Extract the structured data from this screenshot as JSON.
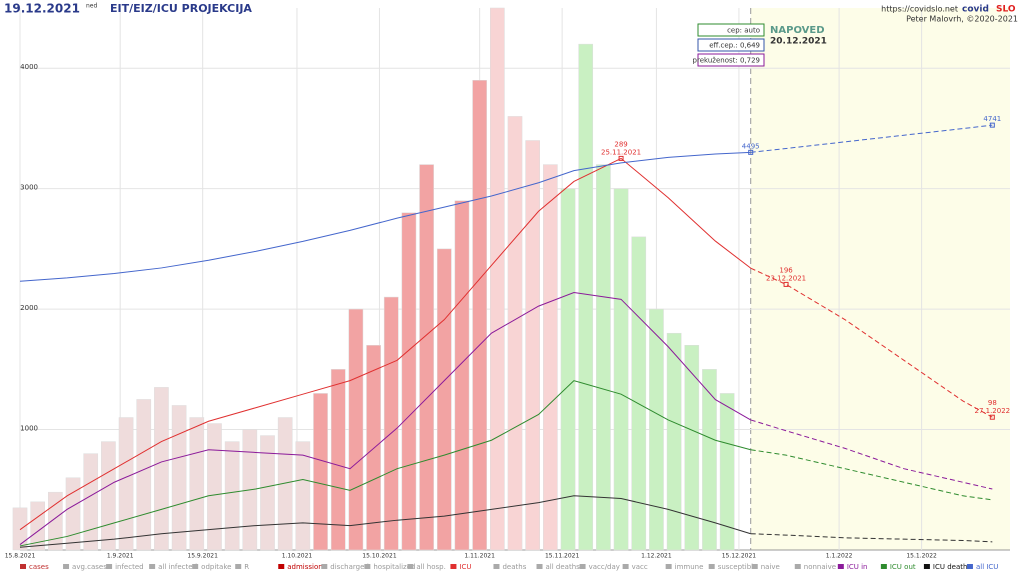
{
  "chart_data": {
    "type": "bar-line",
    "date": "19.12.2021",
    "weekday": "ned",
    "title": "EIT/EIZ/ICU PROJEKCIJA",
    "url": "https://covidslo.net",
    "brand": [
      "covid",
      "SLO"
    ],
    "author": "Peter Malovrh, ©2020-2021",
    "info_boxes": [
      "cep: auto",
      "eff.cep.: 0,649",
      "prekuženost: 0,729"
    ],
    "forecast_title": "NAPOVED",
    "forecast_date": "20.12.2021",
    "forecast_start": 124,
    "xlim": [
      0,
      168
    ],
    "xticks": [
      {
        "value": 0,
        "label": "15.8.2021"
      },
      {
        "value": 17,
        "label": "1.9.2021"
      },
      {
        "value": 31,
        "label": "15.9.2021"
      },
      {
        "value": 47,
        "label": "1.10.2021"
      },
      {
        "value": 61,
        "label": "15.10.2021"
      },
      {
        "value": 78,
        "label": "1.11.2021"
      },
      {
        "value": 92,
        "label": "15.11.2021"
      },
      {
        "value": 108,
        "label": "1.12.2021"
      },
      {
        "value": 122,
        "label": "15.12.2021"
      },
      {
        "value": 139,
        "label": "1.1.2022"
      },
      {
        "value": 153,
        "label": "15.1.2022"
      }
    ],
    "ylim": [
      0,
      4500
    ],
    "yticks": [
      1000,
      2000,
      3000,
      4000
    ],
    "y2lim": [
      0,
      400
    ],
    "y3lim": [
      900,
      5800
    ],
    "grid": true,
    "legend_entries": [
      {
        "name": "cases",
        "color": "#c03030"
      },
      {
        "name": "avg.cases",
        "color": "#aaaaaa"
      },
      {
        "name": "infected",
        "color": "#aaaaaa"
      },
      {
        "name": "all infected",
        "color": "#aaaaaa"
      },
      {
        "name": "odpitake",
        "color": "#aaaaaa"
      },
      {
        "name": "R",
        "color": "#aaaaaa"
      },
      {
        "name": "admissions",
        "color": "#c00000"
      },
      {
        "name": "discharged",
        "color": "#aaaaaa"
      },
      {
        "name": "hospitalized",
        "color": "#aaaaaa"
      },
      {
        "name": "all hosp.",
        "color": "#aaaaaa"
      },
      {
        "name": "ICU",
        "color": "#e03030"
      },
      {
        "name": "deaths",
        "color": "#aaaaaa"
      },
      {
        "name": "all deaths",
        "color": "#aaaaaa"
      },
      {
        "name": "vacc/day",
        "color": "#aaaaaa"
      },
      {
        "name": "vacc",
        "color": "#aaaaaa"
      },
      {
        "name": "immune",
        "color": "#aaaaaa"
      },
      {
        "name": "susceptible",
        "color": "#aaaaaa"
      },
      {
        "name": "naive",
        "color": "#aaaaaa"
      },
      {
        "name": "nonnaive",
        "color": "#aaaaaa"
      },
      {
        "name": "ICU in",
        "color": "#8b1a9a"
      },
      {
        "name": "ICU out",
        "color": "#2e8b2e"
      },
      {
        "name": "ICU deaths",
        "color": "#111111"
      },
      {
        "name": "all ICU",
        "color": "#4466cc"
      }
    ],
    "bars": {
      "legend": 0,
      "x": [
        0,
        3,
        6,
        9,
        12,
        15,
        18,
        21,
        24,
        27,
        30,
        33,
        36,
        39,
        42,
        45,
        48,
        51,
        54,
        57,
        60,
        63,
        66,
        69,
        72,
        75,
        78,
        81,
        84,
        87,
        90,
        93,
        96,
        99,
        102,
        105,
        108,
        111,
        114,
        117,
        120
      ],
      "values": [
        350,
        400,
        480,
        600,
        800,
        900,
        1100,
        1250,
        1350,
        1200,
        1100,
        1050,
        900,
        1000,
        950,
        1100,
        900,
        1300,
        1500,
        2000,
        1700,
        2100,
        2800,
        3200,
        2500,
        2900,
        3900,
        4500,
        3600,
        3400,
        3200,
        3000,
        4200,
        3200,
        3000,
        2600,
        2000,
        1800,
        1700,
        1500,
        1300
      ],
      "color_zones": [
        {
          "until": 49,
          "color": "#efdcdc"
        },
        {
          "until": 79,
          "color": "#f2a3a3"
        },
        {
          "until": 91,
          "color": "#f8d4d4"
        },
        {
          "until": 200,
          "color": "#c9f0c2"
        }
      ]
    },
    "x": [
      0,
      8,
      16,
      24,
      32,
      40,
      48,
      56,
      64,
      72,
      80,
      88,
      94,
      102,
      110,
      118,
      124
    ],
    "forecast_x": [
      124,
      130,
      140,
      150,
      160,
      165
    ],
    "series": [
      {
        "legend": 10,
        "color": "#e03030",
        "axis": "y2",
        "values": [
          15,
          40,
          60,
          80,
          95,
          105,
          115,
          125,
          140,
          170,
          210,
          250,
          272,
          289,
          260,
          228,
          208
        ],
        "forecast": [
          208,
          196,
          170,
          140,
          110,
          98
        ]
      },
      {
        "legend": 19,
        "color": "#8b1a9a",
        "axis": "y2",
        "values": [
          4,
          30,
          50,
          65,
          74,
          72,
          70,
          60,
          90,
          125,
          160,
          180,
          190,
          185,
          150,
          111,
          96
        ],
        "forecast": [
          96,
          88,
          75,
          60,
          50,
          45
        ]
      },
      {
        "legend": 20,
        "color": "#2e8b2e",
        "axis": "y2",
        "values": [
          3,
          10,
          20,
          30,
          40,
          45,
          52,
          44,
          60,
          70,
          81,
          100,
          125,
          115,
          96,
          81,
          74
        ],
        "forecast": [
          74,
          70,
          60,
          50,
          40,
          37
        ]
      },
      {
        "legend": 21,
        "color": "#333333",
        "axis": "y2",
        "values": [
          2,
          5,
          8,
          12,
          15,
          18,
          20,
          18,
          22,
          25,
          30,
          35,
          40,
          38,
          30,
          20,
          12
        ],
        "forecast": [
          12,
          11,
          9,
          8,
          7,
          6
        ]
      },
      {
        "legend": 22,
        "color": "#4466cc",
        "axis": "y3",
        "values": [
          3330,
          3360,
          3400,
          3450,
          3520,
          3600,
          3690,
          3790,
          3900,
          4000,
          4100,
          4220,
          4330,
          4400,
          4450,
          4480,
          4495
        ],
        "forecast": [
          4495,
          4530,
          4590,
          4650,
          4710,
          4741
        ]
      }
    ],
    "annotations": [
      {
        "series": 0,
        "x": 102,
        "value": 289,
        "label": "289",
        "date": "25.11.2021"
      },
      {
        "series": 0,
        "x": 130,
        "value": 196,
        "label": "196",
        "date": "23.12.2021"
      },
      {
        "series": 0,
        "x": 165,
        "value": 98,
        "label": "98",
        "date": "27.1.2022"
      },
      {
        "series": 4,
        "x": 124,
        "value": 4495,
        "label": "4495"
      },
      {
        "series": 4,
        "x": 165,
        "value": 4741,
        "label": "4741"
      }
    ]
  }
}
